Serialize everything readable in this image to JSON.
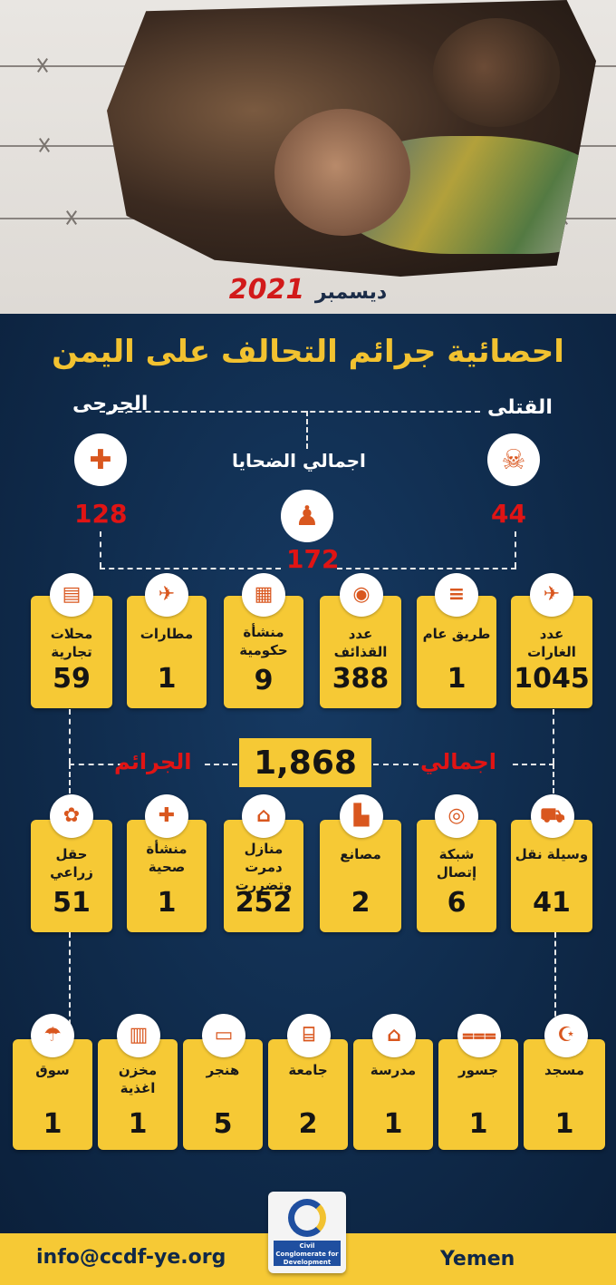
{
  "header": {
    "month": "ديسمبر",
    "year": "2021"
  },
  "title": "احصائية  جرائم التحالف على اليمن",
  "victims": {
    "killed_label": "القتلى",
    "killed_value": "44",
    "injured_label": "الجرحى",
    "injured_value": "128",
    "total_label": "اجمالي الضحايا",
    "total_value": "172"
  },
  "row1": [
    {
      "label": "عدد الغارات",
      "value": "1045",
      "icon": "jet-bomb-icon"
    },
    {
      "label": "طريق عام",
      "value": "1",
      "icon": "road-icon"
    },
    {
      "label": "عدد القذائف",
      "value": "388",
      "icon": "cannon-icon"
    },
    {
      "label": "منشأة حكومية",
      "value": "9",
      "icon": "government-building-icon"
    },
    {
      "label": "مطارات",
      "value": "1",
      "icon": "airport-icon"
    },
    {
      "label": "محلات تجارية",
      "value": "59",
      "icon": "shop-icon"
    }
  ],
  "crimes_total": {
    "left_word": "الجرائم",
    "value": "1,868",
    "right_word": "اجمالي"
  },
  "row2": [
    {
      "label": "وسيلة نقل",
      "value": "41",
      "icon": "car-icon"
    },
    {
      "label": "شبكة إتصال",
      "value": "6",
      "icon": "antenna-icon"
    },
    {
      "label": "مصانع",
      "value": "2",
      "icon": "factory-icon"
    },
    {
      "label": "منازل دمرت وتضررت",
      "value": "252",
      "icon": "house-icon"
    },
    {
      "label": "منشأة صحية",
      "value": "1",
      "icon": "hospital-icon"
    },
    {
      "label": "حقل زراعي",
      "value": "51",
      "icon": "wheat-icon"
    }
  ],
  "row3": [
    {
      "label": "مسجد",
      "value": "1",
      "icon": "mosque-icon"
    },
    {
      "label": "جسور",
      "value": "1",
      "icon": "bridge-icon"
    },
    {
      "label": "مدرسة",
      "value": "1",
      "icon": "school-icon"
    },
    {
      "label": "جامعة",
      "value": "2",
      "icon": "university-icon"
    },
    {
      "label": "هنجر",
      "value": "5",
      "icon": "hangar-icon"
    },
    {
      "label": "مخزن اغذية",
      "value": "1",
      "icon": "food-store-icon"
    },
    {
      "label": "سوق",
      "value": "1",
      "icon": "market-icon"
    }
  ],
  "footer": {
    "email": "info@ccdf-ye.org",
    "country": "Yemen",
    "logo_text": "Civil Conglomerate for Development"
  },
  "colors": {
    "card": "#f6c935",
    "background": "#0f2a4a",
    "accent_red": "#e01414",
    "icon_orange": "#d9571f"
  }
}
